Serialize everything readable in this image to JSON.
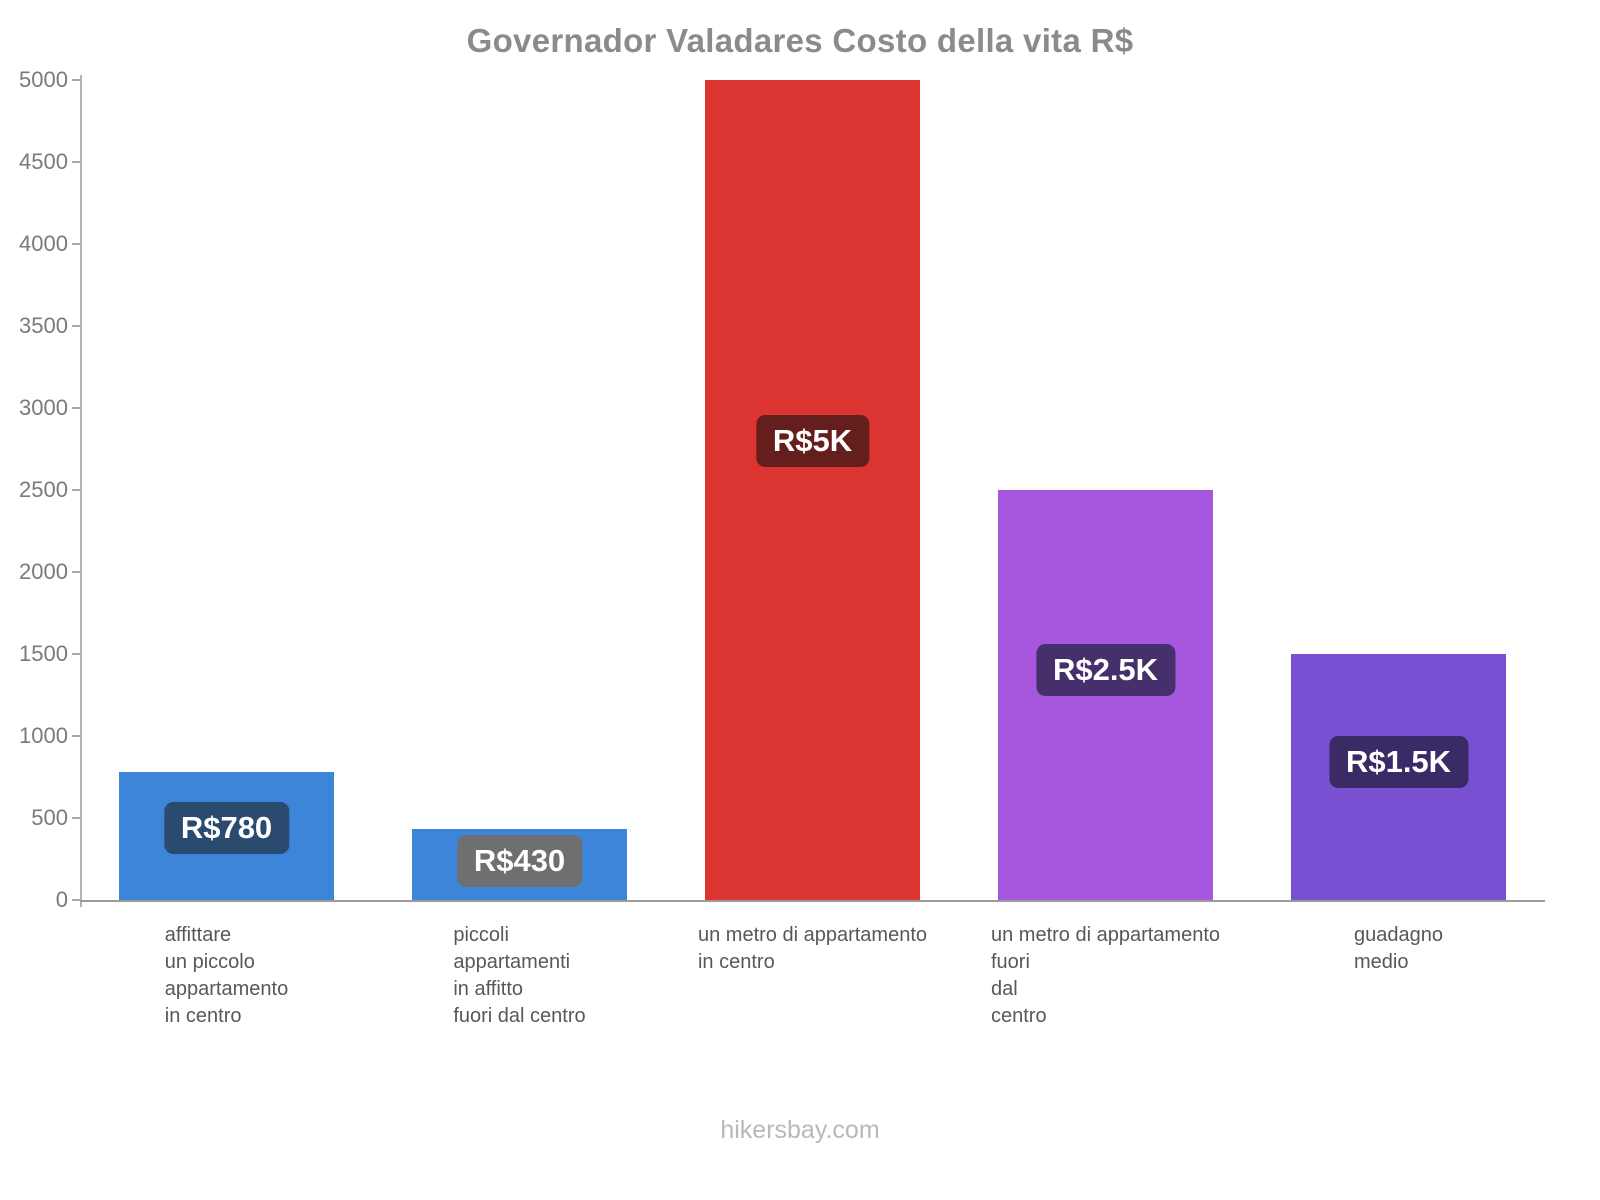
{
  "page": {
    "title": "Governador Valadares Costo della vita R$",
    "footer": "hikersbay.com"
  },
  "chart_data": {
    "type": "bar",
    "title": "Governador Valadares Costo della vita R$",
    "currency": "R$",
    "categories": [
      [
        "affittare",
        "un piccolo",
        "appartamento",
        "in centro"
      ],
      [
        "piccoli",
        "appartamenti",
        "in affitto",
        "fuori dal centro"
      ],
      [
        "un metro di appartamento",
        "in centro"
      ],
      [
        "un metro di appartamento",
        "fuori",
        "dal",
        "centro"
      ],
      [
        "guadagno",
        "medio"
      ]
    ],
    "values": [
      780,
      430,
      5000,
      2500,
      1500
    ],
    "value_labels": [
      "R$780",
      "R$430",
      "R$5K",
      "R$2.5K",
      "R$1.5K"
    ],
    "bar_colors": [
      "#3d85d8",
      "#3d85d8",
      "#dc3431",
      "#a757dd",
      "#7950d2"
    ],
    "label_bg_colors": [
      "#2b4a70",
      "#6f6f6f",
      "#641f1c",
      "#46306b",
      "#3a2a66"
    ],
    "ylim": [
      0,
      5000
    ],
    "yticks": [
      0,
      500,
      1000,
      1500,
      2000,
      2500,
      3000,
      3500,
      4000,
      4500,
      5000
    ],
    "grid": false,
    "legend": null,
    "xlabel": "",
    "ylabel": ""
  }
}
